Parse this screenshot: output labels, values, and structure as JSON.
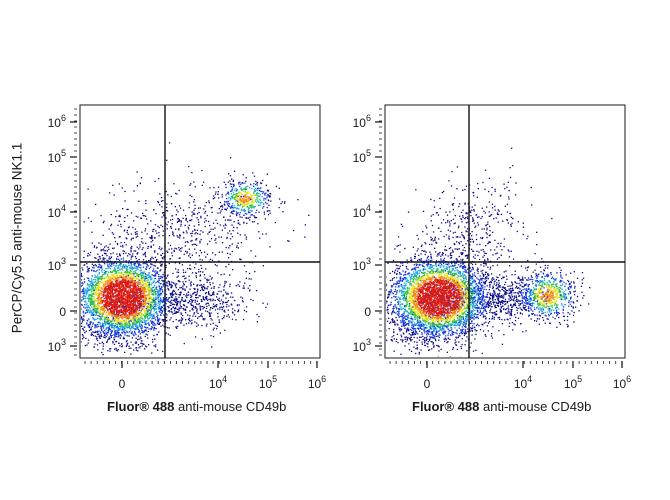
{
  "y_axis_title": "PerCP/Cy5.5 anti-mouse NK1.1",
  "chart_data": [
    {
      "type": "scatter",
      "panel": "left",
      "xlabel": {
        "brand": "Fluor® 488",
        "text": "anti-mouse CD49b"
      },
      "ylabel": "PerCP/Cy5.5 anti-mouse NK1.1",
      "x_scale": "biexponential",
      "y_scale": "biexponential",
      "x_ticks": [
        {
          "base": "0",
          "exp": ""
        },
        {
          "base": "10",
          "exp": "4"
        },
        {
          "base": "10",
          "exp": "5"
        },
        {
          "base": "10",
          "exp": "6"
        }
      ],
      "y_ticks": [
        {
          "base": "10",
          "exp": "3"
        },
        {
          "base": "0",
          "exp": ""
        },
        {
          "base": "10",
          "exp": "3"
        },
        {
          "base": "10",
          "exp": "4"
        },
        {
          "base": "10",
          "exp": "5"
        },
        {
          "base": "10",
          "exp": "6"
        }
      ],
      "gate": {
        "x_position": "between 0 and 10^4",
        "y_position": "just above 10^3"
      },
      "populations": [
        {
          "name": "CD49b- NK1.1- main population",
          "center_x": "~0",
          "center_y": "~0",
          "relative_size": "large"
        },
        {
          "name": "CD49b+ NK1.1+ cluster",
          "center_x": "~3x10^4",
          "center_y": "~1.5x10^4",
          "relative_size": "small"
        },
        {
          "name": "CD49b low-mid NK1.1- tail",
          "center_x": "~10^3-10^4",
          "center_y": "~0",
          "relative_size": "medium"
        },
        {
          "name": "NK1.1 mid diagonal",
          "center_x": "~0-10^4",
          "center_y": "~10^3-10^4",
          "relative_size": "sparse"
        }
      ],
      "colormap": [
        "#0a0a8a",
        "#1133dd",
        "#19a7e0",
        "#2ec24a",
        "#e8e21a",
        "#f58a12",
        "#dd1b12"
      ]
    },
    {
      "type": "scatter",
      "panel": "right",
      "xlabel": {
        "brand": "Fluor® 488",
        "text": "anti-mouse CD49b"
      },
      "ylabel": "",
      "x_scale": "biexponential",
      "y_scale": "biexponential",
      "x_ticks": [
        {
          "base": "0",
          "exp": ""
        },
        {
          "base": "10",
          "exp": "4"
        },
        {
          "base": "10",
          "exp": "5"
        },
        {
          "base": "10",
          "exp": "6"
        }
      ],
      "y_ticks": [
        {
          "base": "10",
          "exp": "3"
        },
        {
          "base": "0",
          "exp": ""
        },
        {
          "base": "10",
          "exp": "3"
        },
        {
          "base": "10",
          "exp": "4"
        },
        {
          "base": "10",
          "exp": "5"
        },
        {
          "base": "10",
          "exp": "6"
        }
      ],
      "gate": {
        "x_position": "between 0 and 10^4",
        "y_position": "just above 10^3"
      },
      "populations": [
        {
          "name": "CD49b- NK1.1- main population",
          "center_x": "~0",
          "center_y": "~0",
          "relative_size": "large"
        },
        {
          "name": "CD49b+ NK1.1- cluster",
          "center_x": "~3x10^4",
          "center_y": "~0",
          "relative_size": "medium"
        },
        {
          "name": "CD49b low-mid NK1.1- bridge",
          "center_x": "~10^3-10^4",
          "center_y": "~0",
          "relative_size": "medium"
        },
        {
          "name": "NK1.1 mid diagonal",
          "center_x": "~0-10^4",
          "center_y": "~10^3-10^4",
          "relative_size": "sparse"
        }
      ],
      "colormap": [
        "#0a0a8a",
        "#1133dd",
        "#19a7e0",
        "#2ec24a",
        "#e8e21a",
        "#f58a12",
        "#dd1b12"
      ]
    }
  ]
}
